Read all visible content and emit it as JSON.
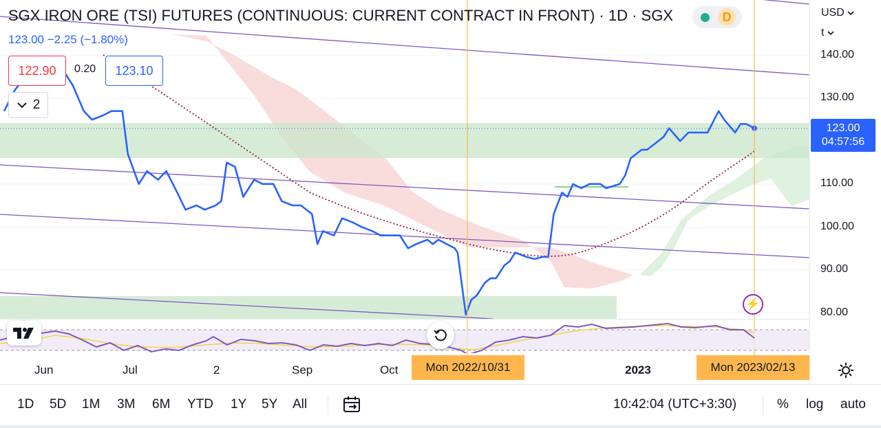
{
  "header": {
    "title": "SGX IRON ORE (TSI) FUTURES (CONTINUOUS: CURRENT CONTRACT IN FRONT) · 1D · SGX",
    "quote": "123.00  −2.25 (−1.80%)",
    "bid": "122.90",
    "spread": "0.20",
    "ask": "123.10",
    "collapse_count": "2",
    "status_letter": "D"
  },
  "price_scale": {
    "currency": "USD",
    "unit": "t",
    "ticks": [
      "140.00",
      "130.00",
      "110.00",
      "100.00",
      "90.00",
      "80.00"
    ],
    "last_price": "123.00",
    "countdown": "04:57:56"
  },
  "time_scale": {
    "ticks": [
      "Jun",
      "Jul",
      "2",
      "Sep",
      "Oct",
      "2023"
    ],
    "crosshair_label_1": "Mon 2022/10/31",
    "crosshair_label_2": "Mon 2023/02/13"
  },
  "toolbar": {
    "timeframes": [
      "1D",
      "5D",
      "1M",
      "3M",
      "6M",
      "YTD",
      "1Y",
      "5Y",
      "All"
    ],
    "clock": "10:42:04 (UTC+3:30)",
    "percent": "%",
    "log": "log",
    "auto": "auto"
  },
  "colors": {
    "price_line": "#2962ff",
    "channel_lines": "#7e57c2",
    "moving_average": "#9c2a4a",
    "cloud_bearish": "#f8d7d7",
    "cloud_bullish": "#dcefdc",
    "zone": "#cfe8d0",
    "crosshair": "#ff9800",
    "rsi": "#7e57c2",
    "rsi_signal": "#f5d442"
  },
  "chart_data": {
    "type": "line",
    "title": "SGX IRON ORE (TSI) FUTURES (CONTINUOUS: CURRENT CONTRACT IN FRONT) · 1D · SGX",
    "ylabel": "USD / t",
    "ylim": [
      78,
      148
    ],
    "series": [
      {
        "name": "SGX IRON ORE (TSI) FUTURES",
        "points": [
          [
            "2022-05-16",
            127
          ],
          [
            "2022-05-20",
            132
          ],
          [
            "2022-05-25",
            136
          ],
          [
            "2022-05-30",
            138
          ],
          [
            "2022-06-02",
            139
          ],
          [
            "2022-06-07",
            136
          ],
          [
            "2022-06-10",
            133
          ],
          [
            "2022-06-14",
            127
          ],
          [
            "2022-06-17",
            125
          ],
          [
            "2022-06-21",
            126
          ],
          [
            "2022-06-24",
            127
          ],
          [
            "2022-06-28",
            127
          ],
          [
            "2022-06-30",
            117
          ],
          [
            "2022-07-04",
            110
          ],
          [
            "2022-07-07",
            113
          ],
          [
            "2022-07-11",
            111
          ],
          [
            "2022-07-14",
            113
          ],
          [
            "2022-07-18",
            108
          ],
          [
            "2022-07-21",
            104
          ],
          [
            "2022-07-25",
            105
          ],
          [
            "2022-07-28",
            104
          ],
          [
            "2022-08-01",
            105
          ],
          [
            "2022-08-03",
            106
          ],
          [
            "2022-08-05",
            115
          ],
          [
            "2022-08-08",
            114
          ],
          [
            "2022-08-11",
            107
          ],
          [
            "2022-08-15",
            111
          ],
          [
            "2022-08-18",
            110
          ],
          [
            "2022-08-22",
            110
          ],
          [
            "2022-08-25",
            106
          ],
          [
            "2022-08-29",
            105
          ],
          [
            "2022-09-01",
            105
          ],
          [
            "2022-09-05",
            103
          ],
          [
            "2022-09-07",
            96
          ],
          [
            "2022-09-09",
            99
          ],
          [
            "2022-09-13",
            98
          ],
          [
            "2022-09-16",
            102
          ],
          [
            "2022-09-20",
            101
          ],
          [
            "2022-09-23",
            100
          ],
          [
            "2022-09-27",
            99
          ],
          [
            "2022-09-30",
            98
          ],
          [
            "2022-10-04",
            98
          ],
          [
            "2022-10-07",
            98
          ],
          [
            "2022-10-10",
            95
          ],
          [
            "2022-10-13",
            96
          ],
          [
            "2022-10-17",
            97
          ],
          [
            "2022-10-19",
            96
          ],
          [
            "2022-10-21",
            97
          ],
          [
            "2022-10-24",
            96
          ],
          [
            "2022-10-27",
            95
          ],
          [
            "2022-10-28",
            94
          ],
          [
            "2022-10-31",
            79.5
          ],
          [
            "2022-11-02",
            83
          ],
          [
            "2022-11-04",
            84
          ],
          [
            "2022-11-07",
            87
          ],
          [
            "2022-11-09",
            88
          ],
          [
            "2022-11-11",
            88
          ],
          [
            "2022-11-14",
            91
          ],
          [
            "2022-11-16",
            92
          ],
          [
            "2022-11-18",
            94
          ],
          [
            "2022-11-22",
            93
          ],
          [
            "2022-11-25",
            92.5
          ],
          [
            "2022-11-28",
            93
          ],
          [
            "2022-11-30",
            93
          ],
          [
            "2022-12-02",
            103
          ],
          [
            "2022-12-05",
            108
          ],
          [
            "2022-12-07",
            107
          ],
          [
            "2022-12-09",
            110
          ],
          [
            "2022-12-12",
            109
          ],
          [
            "2022-12-15",
            110
          ],
          [
            "2022-12-19",
            110
          ],
          [
            "2022-12-21",
            109
          ],
          [
            "2022-12-26",
            110
          ],
          [
            "2022-12-28",
            112
          ],
          [
            "2022-12-30",
            116
          ],
          [
            "2023-01-03",
            118
          ],
          [
            "2023-01-05",
            118
          ],
          [
            "2023-01-09",
            120
          ],
          [
            "2023-01-11",
            121
          ],
          [
            "2023-01-13",
            123
          ],
          [
            "2023-01-17",
            120
          ],
          [
            "2023-01-20",
            122
          ],
          [
            "2023-01-24",
            122
          ],
          [
            "2023-01-27",
            122
          ],
          [
            "2023-01-31",
            127
          ],
          [
            "2023-02-02",
            125
          ],
          [
            "2023-02-06",
            122
          ],
          [
            "2023-02-08",
            124
          ],
          [
            "2023-02-10",
            124
          ],
          [
            "2023-02-13",
            123
          ]
        ]
      }
    ],
    "last_value": 123.0,
    "change": -2.25,
    "change_percent": -1.8
  }
}
